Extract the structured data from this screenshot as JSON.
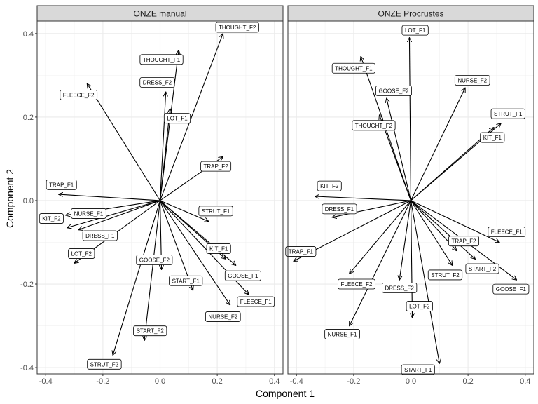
{
  "chart_data": {
    "type": "biplot",
    "xlabel": "Component 1",
    "ylabel": "Component 2",
    "xlim": [
      -0.43,
      0.43
    ],
    "ylim": [
      -0.415,
      0.43
    ],
    "x_ticks": [
      -0.4,
      -0.2,
      0.0,
      0.2,
      0.4
    ],
    "y_ticks": [
      -0.4,
      -0.2,
      0.0,
      0.2,
      0.4
    ],
    "x_tick_labels": [
      "-0.4",
      "-0.2",
      "0.0",
      "0.2",
      "0.4"
    ],
    "y_tick_labels": [
      "-0.4",
      "-0.2",
      "0.0",
      "0.2",
      "0.4"
    ],
    "grid": true,
    "panels": [
      {
        "title": "ONZE manual",
        "vectors": [
          {
            "name": "THOUGHT_F2",
            "x": 0.22,
            "y": 0.4,
            "lx": 0.27,
            "ly": 0.415
          },
          {
            "name": "THOUGHT_F1",
            "x": 0.065,
            "y": 0.36,
            "lx": 0.005,
            "ly": 0.338
          },
          {
            "name": "DRESS_F2",
            "x": 0.02,
            "y": 0.26,
            "lx": -0.01,
            "ly": 0.283
          },
          {
            "name": "LOT_F1",
            "x": 0.035,
            "y": 0.22,
            "lx": 0.06,
            "ly": 0.197
          },
          {
            "name": "FLEECE_F2",
            "x": -0.255,
            "y": 0.28,
            "lx": -0.285,
            "ly": 0.253
          },
          {
            "name": "TRAP_F2",
            "x": 0.22,
            "y": 0.105,
            "lx": 0.195,
            "ly": 0.082
          },
          {
            "name": "TRAP_F1",
            "x": -0.355,
            "y": 0.015,
            "lx": -0.345,
            "ly": 0.038
          },
          {
            "name": "STRUT_F1",
            "x": 0.17,
            "y": -0.05,
            "lx": 0.195,
            "ly": -0.025
          },
          {
            "name": "NURSE_F1",
            "x": -0.33,
            "y": -0.035,
            "lx": -0.25,
            "ly": -0.031
          },
          {
            "name": "KIT_F2",
            "x": -0.325,
            "y": -0.065,
            "lx": -0.38,
            "ly": -0.043
          },
          {
            "name": "DRESS_F1",
            "x": -0.285,
            "y": -0.07,
            "lx": -0.21,
            "ly": -0.084
          },
          {
            "name": "KIT_F1",
            "x": 0.23,
            "y": -0.14,
            "lx": 0.205,
            "ly": -0.115
          },
          {
            "name": "LOT_F2",
            "x": -0.3,
            "y": -0.15,
            "lx": -0.275,
            "ly": -0.127
          },
          {
            "name": "GOOSE_F1",
            "x": 0.265,
            "y": -0.155,
            "lx": 0.29,
            "ly": -0.18
          },
          {
            "name": "GOOSE_F2",
            "x": 0.005,
            "y": -0.165,
            "lx": -0.02,
            "ly": -0.142
          },
          {
            "name": "START_F1",
            "x": 0.115,
            "y": -0.215,
            "lx": 0.09,
            "ly": -0.192
          },
          {
            "name": "FLEECE_F1",
            "x": 0.31,
            "y": -0.225,
            "lx": 0.335,
            "ly": -0.242
          },
          {
            "name": "NURSE_F2",
            "x": 0.245,
            "y": -0.25,
            "lx": 0.22,
            "ly": -0.278
          },
          {
            "name": "START_F2",
            "x": -0.055,
            "y": -0.335,
            "lx": -0.035,
            "ly": -0.312
          },
          {
            "name": "STRUT_F2",
            "x": -0.165,
            "y": -0.37,
            "lx": -0.195,
            "ly": -0.392
          }
        ]
      },
      {
        "title": "ONZE Procrustes",
        "vectors": [
          {
            "name": "LOT_F1",
            "x": -0.005,
            "y": 0.39,
            "lx": 0.015,
            "ly": 0.408
          },
          {
            "name": "THOUGHT_F1",
            "x": -0.175,
            "y": 0.345,
            "lx": -0.2,
            "ly": 0.317
          },
          {
            "name": "NURSE_F2",
            "x": 0.19,
            "y": 0.27,
            "lx": 0.215,
            "ly": 0.288
          },
          {
            "name": "GOOSE_F2",
            "x": -0.085,
            "y": 0.245,
            "lx": -0.06,
            "ly": 0.263
          },
          {
            "name": "STRUT_F1",
            "x": 0.315,
            "y": 0.185,
            "lx": 0.34,
            "ly": 0.208
          },
          {
            "name": "KIT_F1",
            "x": 0.29,
            "y": 0.175,
            "lx": 0.285,
            "ly": 0.151
          },
          {
            "name": "THOUGHT_F2",
            "x": -0.11,
            "y": 0.205,
            "lx": -0.13,
            "ly": 0.18
          },
          {
            "name": "KIT_F2",
            "x": -0.335,
            "y": 0.01,
            "lx": -0.285,
            "ly": 0.035
          },
          {
            "name": "DRESS_F1",
            "x": -0.275,
            "y": -0.04,
            "lx": -0.25,
            "ly": -0.02
          },
          {
            "name": "FLEECE_F1",
            "x": 0.31,
            "y": -0.1,
            "lx": 0.335,
            "ly": -0.075
          },
          {
            "name": "TRAP_F2",
            "x": 0.16,
            "y": -0.12,
            "lx": 0.185,
            "ly": -0.097
          },
          {
            "name": "TRAP_F1",
            "x": -0.41,
            "y": -0.145,
            "lx": -0.385,
            "ly": -0.122
          },
          {
            "name": "START_F2",
            "x": 0.225,
            "y": -0.14,
            "lx": 0.25,
            "ly": -0.163
          },
          {
            "name": "STRUT_F2",
            "x": 0.145,
            "y": -0.155,
            "lx": 0.12,
            "ly": -0.178
          },
          {
            "name": "GOOSE_F1",
            "x": 0.37,
            "y": -0.19,
            "lx": 0.35,
            "ly": -0.212
          },
          {
            "name": "FLEECE_F2",
            "x": -0.215,
            "y": -0.175,
            "lx": -0.19,
            "ly": -0.2
          },
          {
            "name": "DRESS_F2",
            "x": -0.04,
            "y": -0.19,
            "lx": -0.04,
            "ly": -0.209
          },
          {
            "name": "LOT_F2",
            "x": 0.005,
            "y": -0.28,
            "lx": 0.03,
            "ly": -0.253
          },
          {
            "name": "NURSE_F1",
            "x": -0.215,
            "y": -0.3,
            "lx": -0.24,
            "ly": -0.32
          },
          {
            "name": "START_F1",
            "x": 0.1,
            "y": -0.39,
            "lx": 0.025,
            "ly": -0.405
          }
        ]
      }
    ]
  }
}
